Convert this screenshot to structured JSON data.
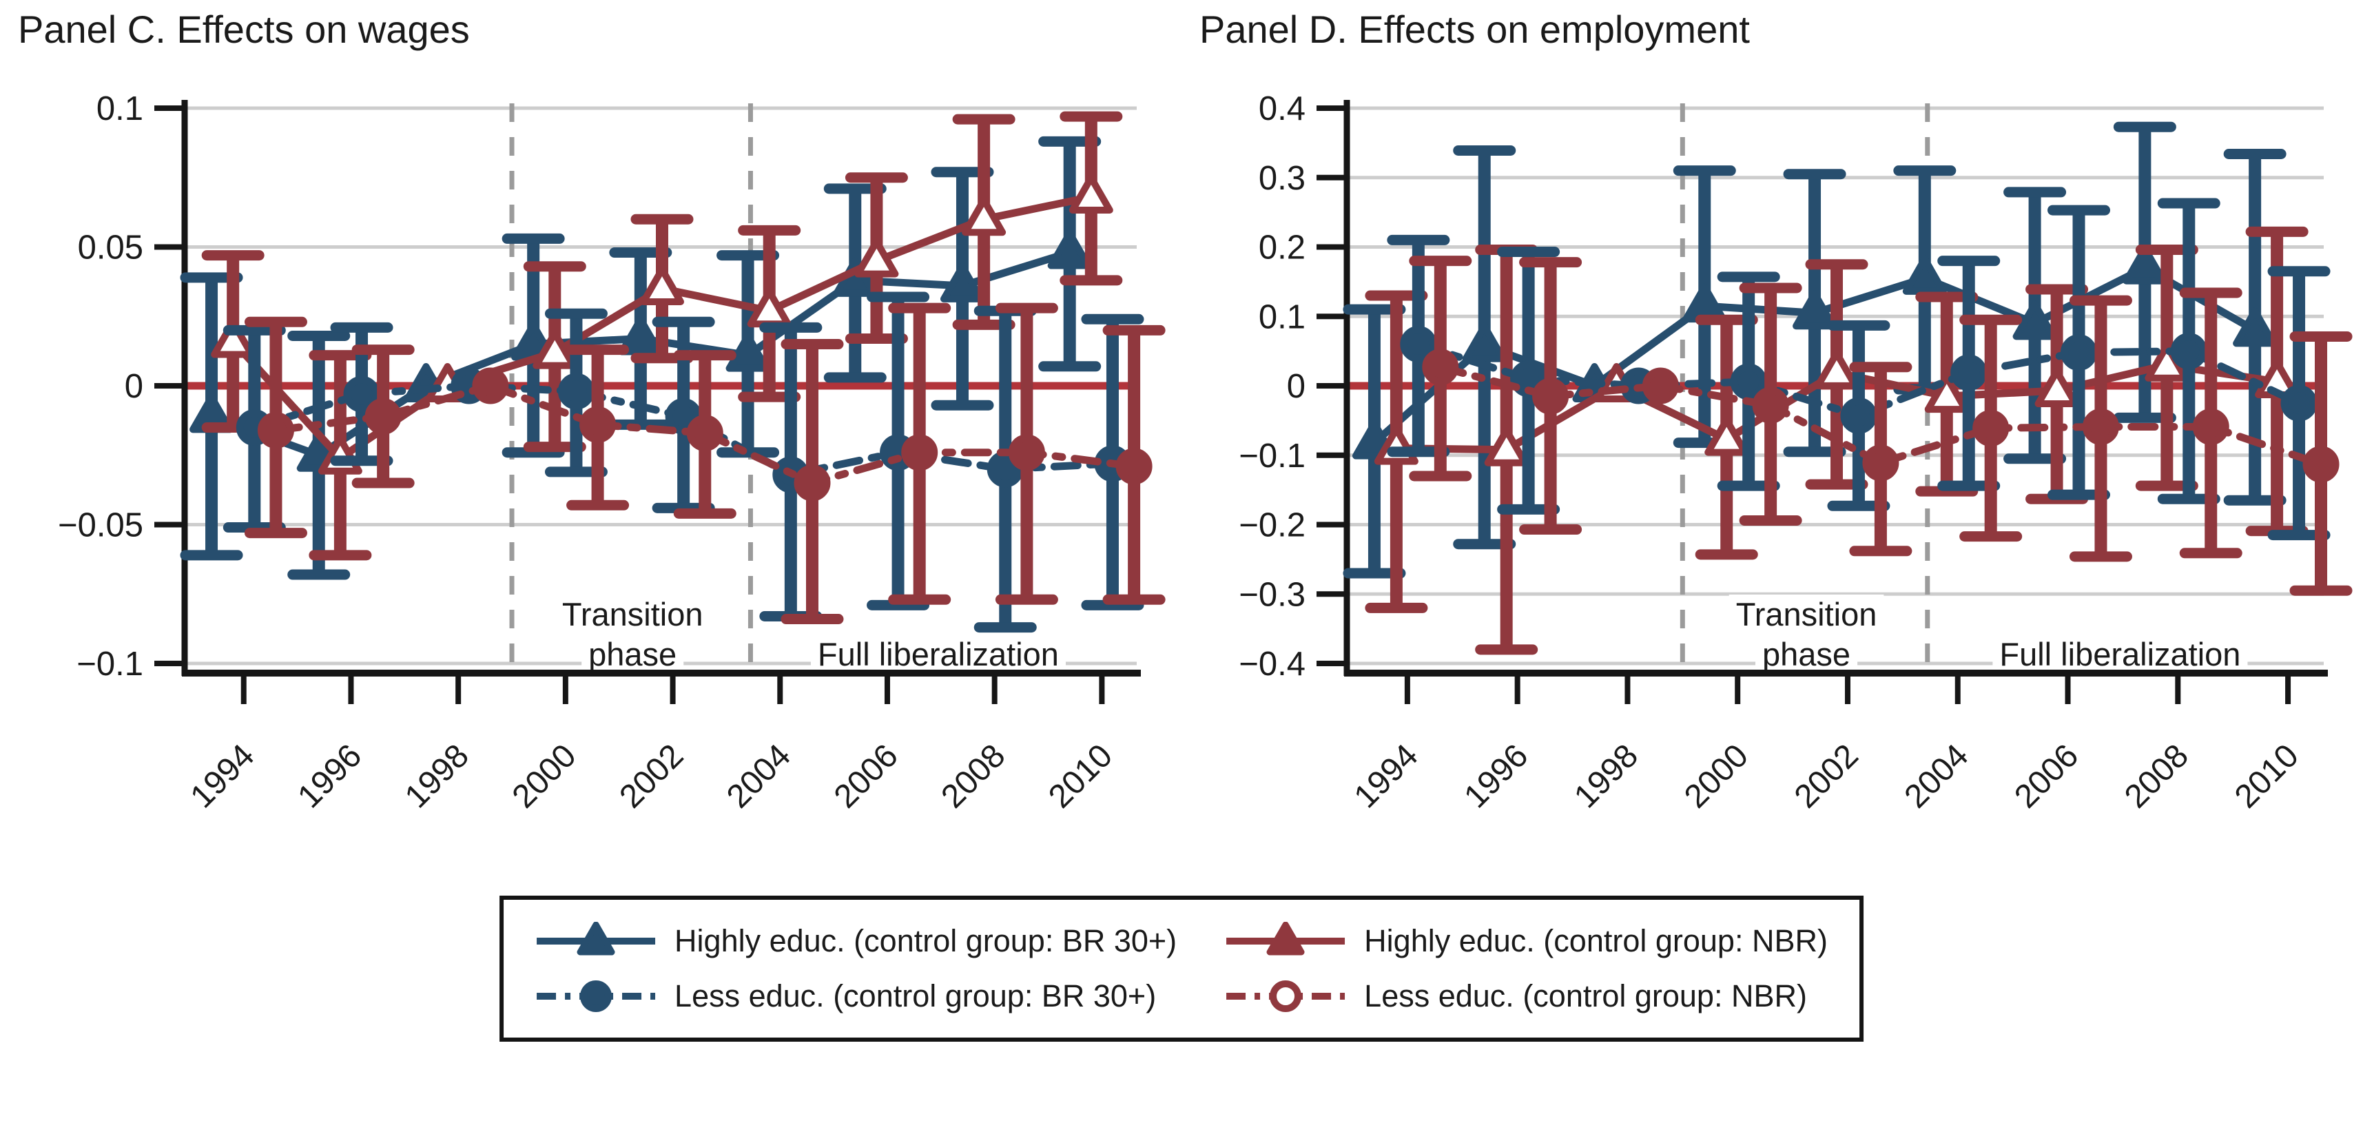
{
  "figure": {
    "background": "#ffffff"
  },
  "colors": {
    "blue": "#274e6e",
    "maroon": "#90383e",
    "zero_line": "#b2343a",
    "grid": "#cdcdcd",
    "phase_line": "#9b9b9b",
    "axis": "#161616",
    "text": "#1a1a1a"
  },
  "legend": {
    "entries": [
      {
        "label": "Highly educ. (control group: BR 30+)",
        "color": "blue",
        "line": "solid",
        "marker": "triangle-filled"
      },
      {
        "label": "Highly educ. (control group: NBR)",
        "color": "maroon",
        "line": "solid",
        "marker": "triangle-filled"
      },
      {
        "label": "Less educ. (control group: BR 30+)",
        "color": "blue",
        "line": "dashdot",
        "marker": "circle-filled"
      },
      {
        "label": "Less educ. (control group: NBR)",
        "color": "maroon",
        "line": "dashdot",
        "marker": "circle-open"
      }
    ]
  },
  "chart_data": [
    {
      "type": "line",
      "title": "Panel C. Effects on wages",
      "xlabel": "",
      "ylabel": "",
      "x": [
        1994,
        1996,
        1998,
        2000,
        2002,
        2004,
        2006,
        2008,
        2010
      ],
      "xtick_labels": [
        "1994",
        "1996",
        "1998",
        "2000",
        "2002",
        "2004",
        "2006",
        "2008",
        "2010"
      ],
      "xlim": [
        1992.95,
        2010.65
      ],
      "ylim": [
        -0.1,
        0.1
      ],
      "yticks": [
        0.1,
        0.05,
        0,
        -0.05,
        -0.1
      ],
      "ytick_labels": [
        "0.1",
        "0.05",
        "0",
        "−0.05",
        "−0.1"
      ],
      "grid": true,
      "legend_position": "bottom",
      "zero_line": 0,
      "reference_year": 1998,
      "phase_lines": [
        {
          "x": 1999.0
        },
        {
          "x": 2003.45
        }
      ],
      "annotations": [
        {
          "lines": [
            "Transition",
            "phase"
          ],
          "x": 2001.25
        },
        {
          "lines": [
            "Full liberalization"
          ],
          "x": 2006.95
        }
      ],
      "series": [
        {
          "name": "Highly educ. (control group: BR 30+)",
          "color": "blue",
          "line": "solid",
          "marker": "triangle-filled",
          "offset": -0.6,
          "values": [
            -0.011,
            -0.025,
            0,
            0.015,
            0.017,
            0.011,
            0.038,
            0.036,
            0.048
          ],
          "ci_low": [
            -0.061,
            -0.068,
            0,
            -0.024,
            -0.014,
            -0.024,
            0.003,
            -0.007,
            0.007
          ],
          "ci_high": [
            0.039,
            0.018,
            0,
            0.053,
            0.048,
            0.047,
            0.071,
            0.077,
            0.088
          ]
        },
        {
          "name": "Highly educ. (control group: NBR)",
          "color": "maroon",
          "line": "solid",
          "marker": "triangle-open",
          "offset": -0.2,
          "values": [
            0.016,
            -0.026,
            0,
            0.012,
            0.035,
            0.027,
            0.045,
            0.06,
            0.068
          ],
          "ci_low": [
            -0.015,
            -0.061,
            0,
            -0.022,
            0.01,
            -0.004,
            0.017,
            0.022,
            0.038
          ],
          "ci_high": [
            0.047,
            0.011,
            0,
            0.043,
            0.06,
            0.056,
            0.075,
            0.096,
            0.097
          ]
        },
        {
          "name": "Less educ. (control group: BR 30+)",
          "color": "blue",
          "line": "dashdot",
          "marker": "circle-filled",
          "offset": 0.2,
          "values": [
            -0.015,
            -0.003,
            0,
            -0.002,
            -0.011,
            -0.032,
            -0.024,
            -0.03,
            -0.028
          ],
          "ci_low": [
            -0.051,
            -0.027,
            0,
            -0.031,
            -0.044,
            -0.083,
            -0.079,
            -0.087,
            -0.079
          ],
          "ci_high": [
            0.02,
            0.021,
            0,
            0.026,
            0.023,
            0.021,
            0.032,
            0.027,
            0.024
          ]
        },
        {
          "name": "Less educ. (control group: NBR)",
          "color": "maroon",
          "line": "dashdot",
          "marker": "circle-filled",
          "offset": 0.6,
          "values": [
            -0.016,
            -0.011,
            0,
            -0.014,
            -0.017,
            -0.035,
            -0.024,
            -0.024,
            -0.029
          ],
          "ci_low": [
            -0.053,
            -0.035,
            0,
            -0.043,
            -0.046,
            -0.084,
            -0.077,
            -0.077,
            -0.077
          ],
          "ci_high": [
            0.023,
            0.013,
            0,
            0.013,
            0.011,
            0.015,
            0.028,
            0.028,
            0.02
          ]
        }
      ]
    },
    {
      "type": "line",
      "title": "Panel D. Effects on employment",
      "xlabel": "",
      "ylabel": "",
      "x": [
        1994,
        1996,
        1998,
        2000,
        2002,
        2004,
        2006,
        2008,
        2010
      ],
      "xtick_labels": [
        "1994",
        "1996",
        "1998",
        "2000",
        "2002",
        "2004",
        "2006",
        "2008",
        "2010"
      ],
      "xlim": [
        1992.95,
        2010.65
      ],
      "ylim": [
        -0.4,
        0.4
      ],
      "yticks": [
        0.4,
        0.3,
        0.2,
        0.1,
        0,
        -0.1,
        -0.2,
        -0.3,
        -0.4
      ],
      "ytick_labels": [
        "0.4",
        "0.3",
        "0.2",
        "0.1",
        "0",
        "−0.1",
        "−0.2",
        "−0.3",
        "−0.4"
      ],
      "grid": true,
      "legend_position": "bottom",
      "zero_line": 0,
      "reference_year": 1998,
      "phase_lines": [
        {
          "x": 1999.0
        },
        {
          "x": 2003.45
        }
      ],
      "annotations": [
        {
          "lines": [
            "Transition",
            "phase"
          ],
          "x": 2001.25
        },
        {
          "lines": [
            "Full liberalization"
          ],
          "x": 2006.95
        }
      ],
      "series": [
        {
          "name": "Highly educ. (control group: BR 30+)",
          "color": "blue",
          "line": "solid",
          "marker": "triangle-filled",
          "offset": -0.6,
          "values": [
            -0.082,
            0.058,
            0,
            0.115,
            0.105,
            0.155,
            0.09,
            0.17,
            0.08
          ],
          "ci_low": [
            -0.27,
            -0.228,
            0,
            -0.082,
            -0.095,
            -0.005,
            -0.105,
            -0.046,
            -0.165
          ],
          "ci_high": [
            0.11,
            0.339,
            0,
            0.31,
            0.305,
            0.31,
            0.279,
            0.373,
            0.334
          ]
        },
        {
          "name": "Highly educ. (control group: NBR)",
          "color": "maroon",
          "line": "solid",
          "marker": "triangle-open",
          "offset": -0.2,
          "values": [
            -0.09,
            -0.092,
            0,
            -0.077,
            0.019,
            -0.015,
            -0.007,
            0.03,
            0.006
          ],
          "ci_low": [
            -0.32,
            -0.38,
            0,
            -0.243,
            -0.142,
            -0.152,
            -0.163,
            -0.144,
            -0.209
          ],
          "ci_high": [
            0.13,
            0.196,
            0,
            0.095,
            0.175,
            0.128,
            0.139,
            0.196,
            0.222
          ]
        },
        {
          "name": "Less educ. (control group: BR 30+)",
          "color": "blue",
          "line": "dashdot",
          "marker": "circle-filled",
          "offset": 0.2,
          "values": [
            0.06,
            0.01,
            0,
            0.006,
            -0.043,
            0.019,
            0.048,
            0.05,
            -0.025
          ],
          "ci_low": [
            -0.095,
            -0.178,
            0,
            -0.144,
            -0.173,
            -0.144,
            -0.157,
            -0.163,
            -0.215
          ],
          "ci_high": [
            0.21,
            0.193,
            0,
            0.157,
            0.087,
            0.18,
            0.253,
            0.263,
            0.165
          ]
        },
        {
          "name": "Less educ. (control group: NBR)",
          "color": "maroon",
          "line": "dashdot",
          "marker": "circle-filled",
          "offset": 0.6,
          "values": [
            0.027,
            -0.015,
            0,
            -0.028,
            -0.111,
            -0.061,
            -0.059,
            -0.059,
            -0.113
          ],
          "ci_low": [
            -0.13,
            -0.207,
            0,
            -0.194,
            -0.238,
            -0.217,
            -0.246,
            -0.241,
            -0.295
          ],
          "ci_high": [
            0.18,
            0.178,
            0,
            0.141,
            0.027,
            0.095,
            0.123,
            0.134,
            0.071
          ]
        }
      ]
    }
  ]
}
